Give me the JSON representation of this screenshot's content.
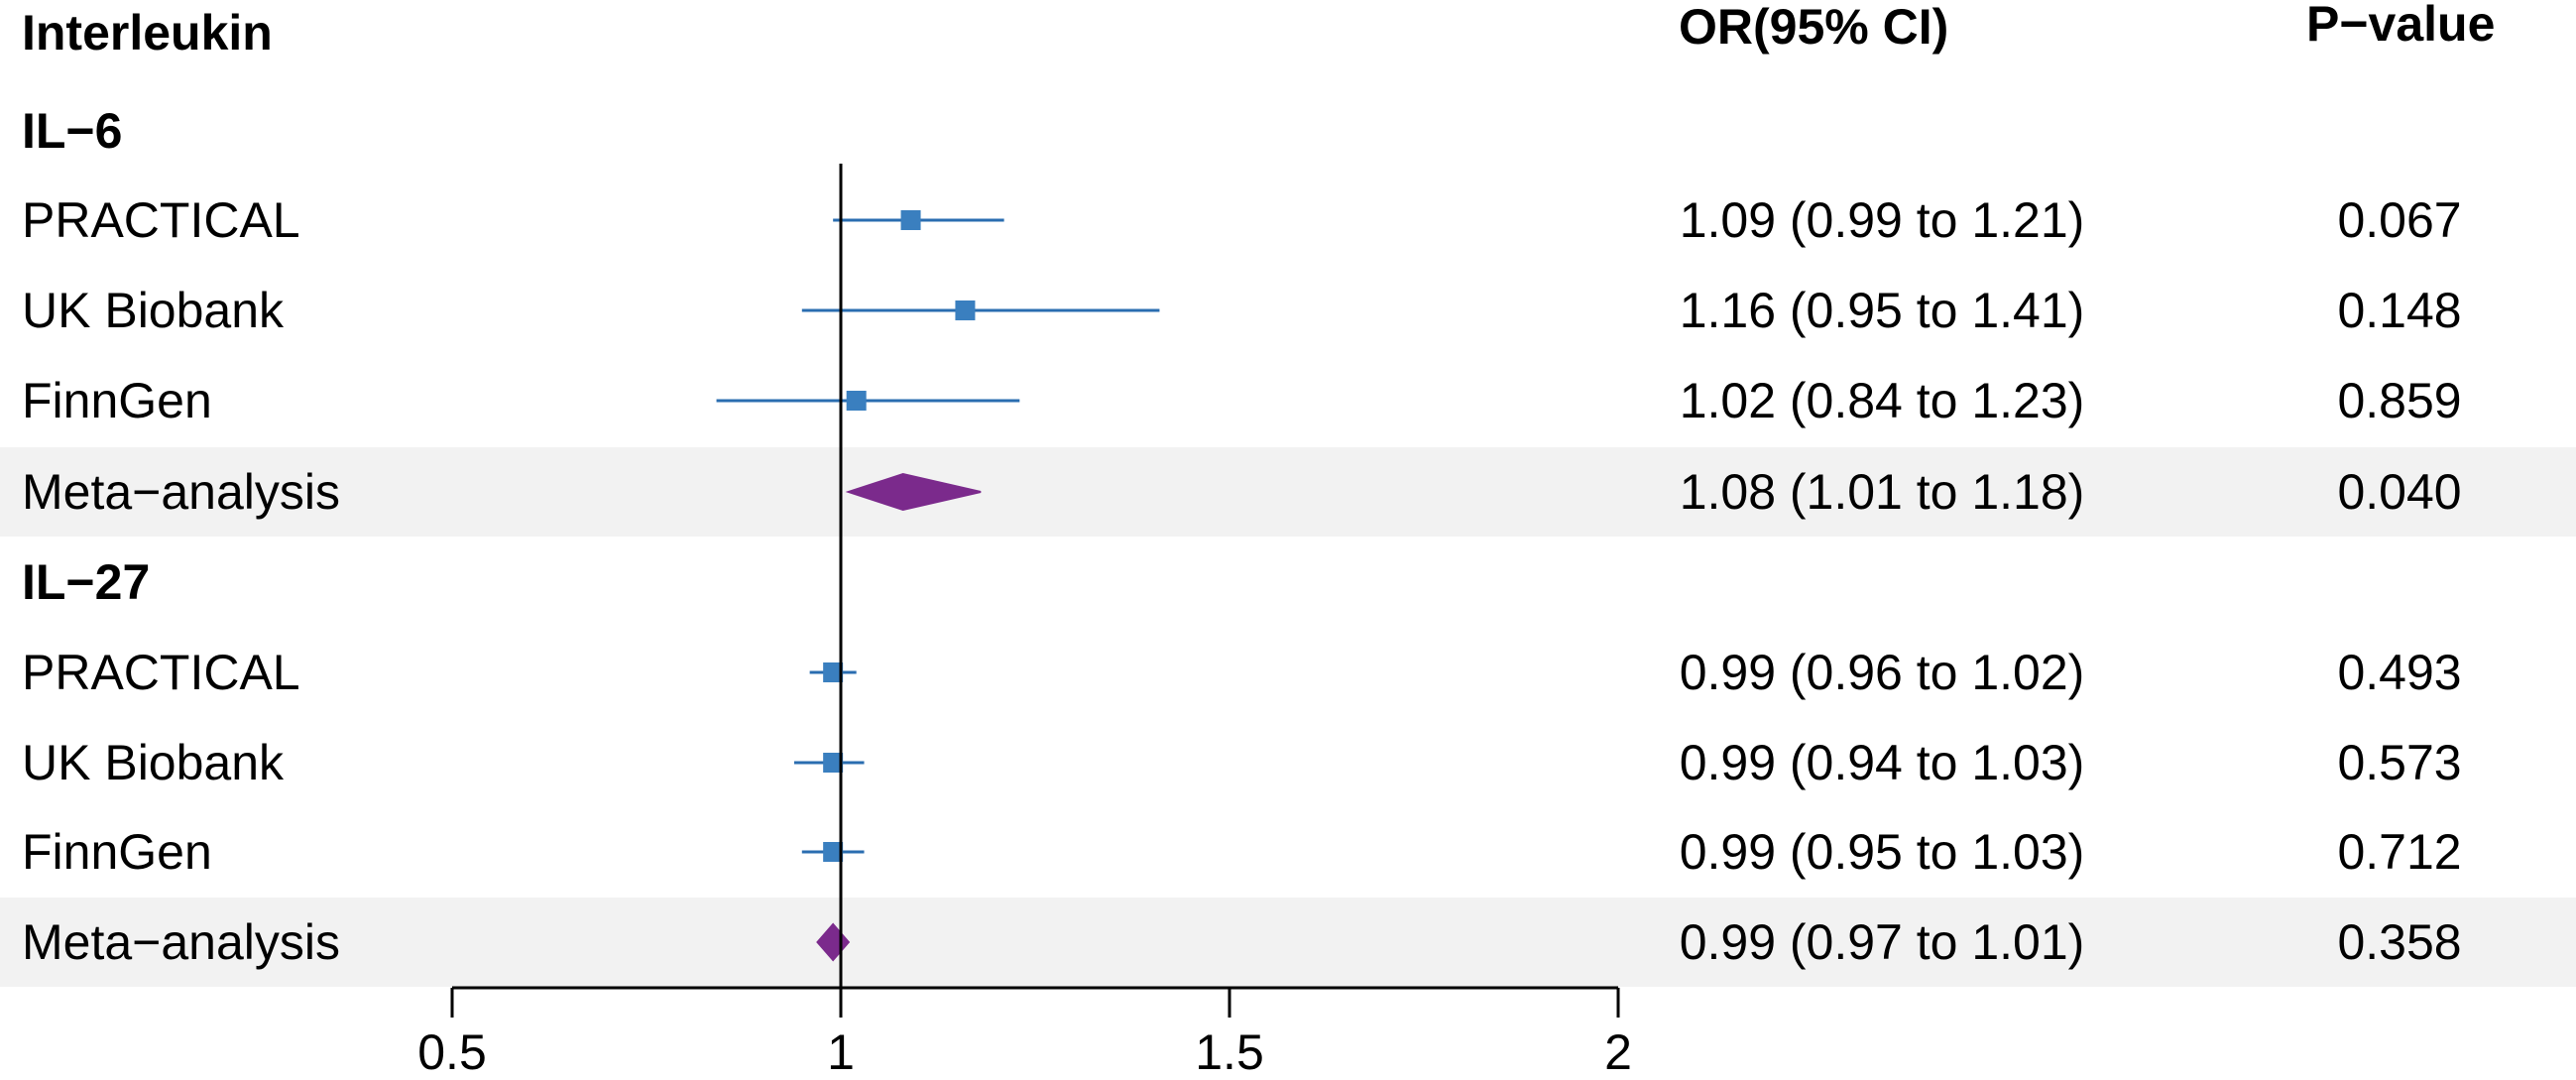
{
  "headers": {
    "label": "Interleukin",
    "or": "OR(95% CI)",
    "p": "P−value"
  },
  "chart_data": {
    "type": "forest",
    "xlabel": "",
    "x_ticks": [
      0.5,
      1,
      1.5,
      2
    ],
    "x_tick_labels": [
      "0.5",
      "1",
      "1.5",
      "2"
    ],
    "xlim": [
      0.5,
      2
    ],
    "reference_line": 1,
    "groups": [
      {
        "name": "IL−6",
        "rows": [
          {
            "label": "PRACTICAL",
            "or": 1.09,
            "lo": 0.99,
            "hi": 1.21,
            "or_text": "1.09 (0.99 to 1.21)",
            "p": "0.067",
            "meta": false
          },
          {
            "label": "UK Biobank",
            "or": 1.16,
            "lo": 0.95,
            "hi": 1.41,
            "or_text": "1.16 (0.95 to 1.41)",
            "p": "0.148",
            "meta": false
          },
          {
            "label": "FinnGen",
            "or": 1.02,
            "lo": 0.84,
            "hi": 1.23,
            "or_text": "1.02 (0.84 to 1.23)",
            "p": "0.859",
            "meta": false
          },
          {
            "label": "Meta−analysis",
            "or": 1.08,
            "lo": 1.01,
            "hi": 1.18,
            "or_text": "1.08 (1.01 to 1.18)",
            "p": "0.040",
            "meta": true
          }
        ]
      },
      {
        "name": "IL−27",
        "rows": [
          {
            "label": "PRACTICAL",
            "or": 0.99,
            "lo": 0.96,
            "hi": 1.02,
            "or_text": "0.99 (0.96 to 1.02)",
            "p": "0.493",
            "meta": false
          },
          {
            "label": "UK Biobank",
            "or": 0.99,
            "lo": 0.94,
            "hi": 1.03,
            "or_text": "0.99 (0.94 to 1.03)",
            "p": "0.573",
            "meta": false
          },
          {
            "label": "FinnGen",
            "or": 0.99,
            "lo": 0.95,
            "hi": 1.03,
            "or_text": "0.99 (0.95 to 1.03)",
            "p": "0.712",
            "meta": false
          },
          {
            "label": "Meta−analysis",
            "or": 0.99,
            "lo": 0.97,
            "hi": 1.01,
            "or_text": "0.99 (0.97 to 1.01)",
            "p": "0.358",
            "meta": true
          }
        ]
      }
    ]
  },
  "colors": {
    "point": "#3a7fbf",
    "ci": "#2a6db0",
    "meta": "#7b2a8c",
    "band": "#f2f2f2",
    "axis": "#000000"
  }
}
